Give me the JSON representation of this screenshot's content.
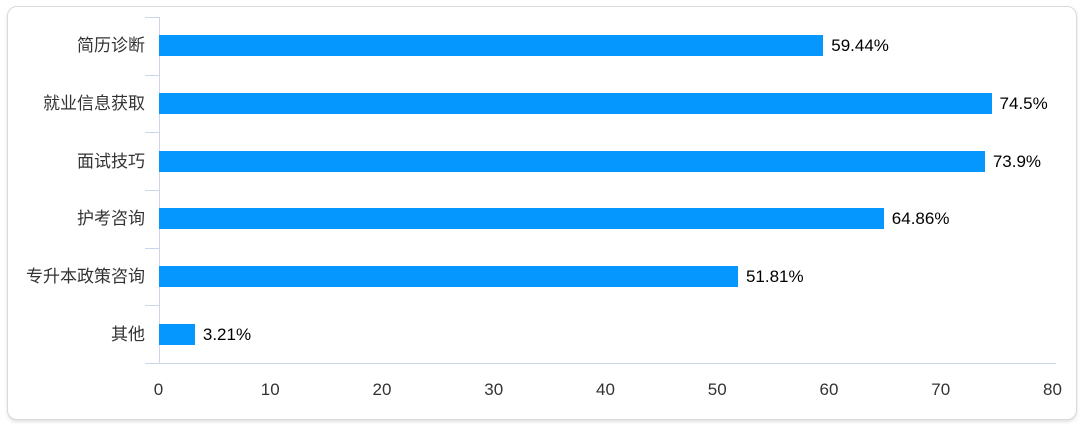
{
  "chart_data": {
    "type": "bar",
    "orientation": "horizontal",
    "title": "",
    "xlabel": "",
    "ylabel": "",
    "categories": [
      "简历诊断",
      "就业信息获取",
      "面试技巧",
      "护考咨询",
      "专升本政策咨询",
      "其他"
    ],
    "values": [
      59.44,
      74.5,
      73.9,
      64.86,
      51.81,
      3.21
    ],
    "data_labels": [
      "59.44%",
      "74.5%",
      "73.9%",
      "64.86%",
      "51.81%",
      "3.21%"
    ],
    "x_ticks": [
      0,
      10,
      20,
      30,
      40,
      50,
      60,
      70,
      80
    ],
    "xlim": [
      0,
      80
    ],
    "grid": false,
    "legend": "none",
    "colors": {
      "bar": "#0597fd",
      "axis_line": "#ccd6eb",
      "tick_label": "#333333",
      "category_label": "#333333",
      "data_label": "#000000",
      "card_border": "#dadada",
      "background": "#ffffff"
    }
  }
}
